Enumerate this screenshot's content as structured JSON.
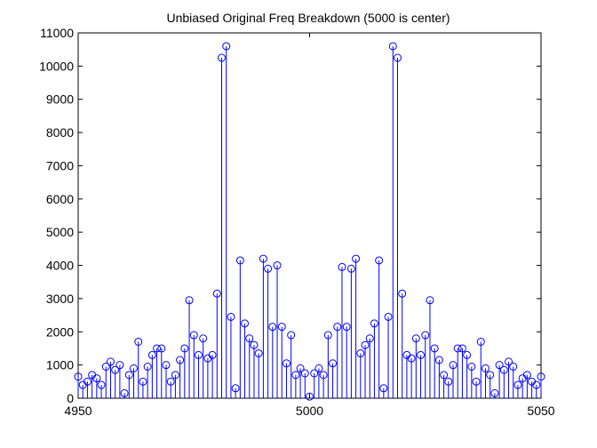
{
  "chart_data": {
    "type": "stem",
    "title": "Unbiased Original Freq Breakdown (5000 is center)",
    "xlabel": "",
    "ylabel": "",
    "xlim": [
      4950,
      5050
    ],
    "ylim": [
      0,
      11000
    ],
    "xticks": [
      4950,
      5000,
      5050
    ],
    "yticks": [
      0,
      1000,
      2000,
      3000,
      4000,
      5000,
      6000,
      7000,
      8000,
      9000,
      10000,
      11000
    ],
    "grid": false,
    "legend": "none",
    "colors": {
      "stem": "#0000ff",
      "axis": "#000000",
      "background": "#ffffff"
    },
    "series": [
      {
        "x": [
          4950,
          4951,
          4952,
          4953,
          4954,
          4955,
          4956,
          4957,
          4958,
          4959,
          4960,
          4961,
          4962,
          4963,
          4964,
          4965,
          4966,
          4967,
          4968,
          4969,
          4970,
          4971,
          4972,
          4973,
          4974,
          4975,
          4976,
          4977,
          4978,
          4979,
          4980,
          4981,
          4982,
          4983,
          4984,
          4985,
          4986,
          4987,
          4988,
          4989,
          4990,
          4991,
          4992,
          4993,
          4994,
          4995,
          4996,
          4997,
          4998,
          4999,
          5000,
          5001,
          5002,
          5003,
          5004,
          5005,
          5006,
          5007,
          5008,
          5009,
          5010,
          5011,
          5012,
          5013,
          5014,
          5015,
          5016,
          5017,
          5018,
          5019,
          5020,
          5021,
          5022,
          5023,
          5024,
          5025,
          5026,
          5027,
          5028,
          5029,
          5030,
          5031,
          5032,
          5033,
          5034,
          5035,
          5036,
          5037,
          5038,
          5039,
          5040,
          5041,
          5042,
          5043,
          5044,
          5045,
          5046,
          5047,
          5048,
          5049,
          5050
        ],
        "y": [
          650,
          400,
          500,
          700,
          600,
          400,
          950,
          1100,
          850,
          1000,
          150,
          700,
          900,
          1700,
          500,
          950,
          1300,
          1500,
          1500,
          1000,
          500,
          700,
          1150,
          1500,
          2950,
          1900,
          1300,
          1800,
          1200,
          1300,
          3150,
          10250,
          10600,
          2450,
          300,
          4150,
          2250,
          1800,
          1600,
          1350,
          4200,
          3900,
          2150,
          4000,
          2150,
          1050,
          1900,
          700,
          900,
          750,
          50,
          750,
          900,
          700,
          1900,
          1050,
          2150,
          3950,
          2150,
          3900,
          4200,
          1350,
          1600,
          1800,
          2250,
          4150,
          300,
          2450,
          10600,
          10250,
          3150,
          1300,
          1200,
          1800,
          1300,
          1900,
          2950,
          1500,
          1150,
          700,
          500,
          1000,
          1500,
          1500,
          1300,
          950,
          500,
          1700,
          900,
          700,
          150,
          1000,
          850,
          1100,
          950,
          400,
          600,
          700,
          500,
          400,
          650
        ]
      }
    ]
  }
}
